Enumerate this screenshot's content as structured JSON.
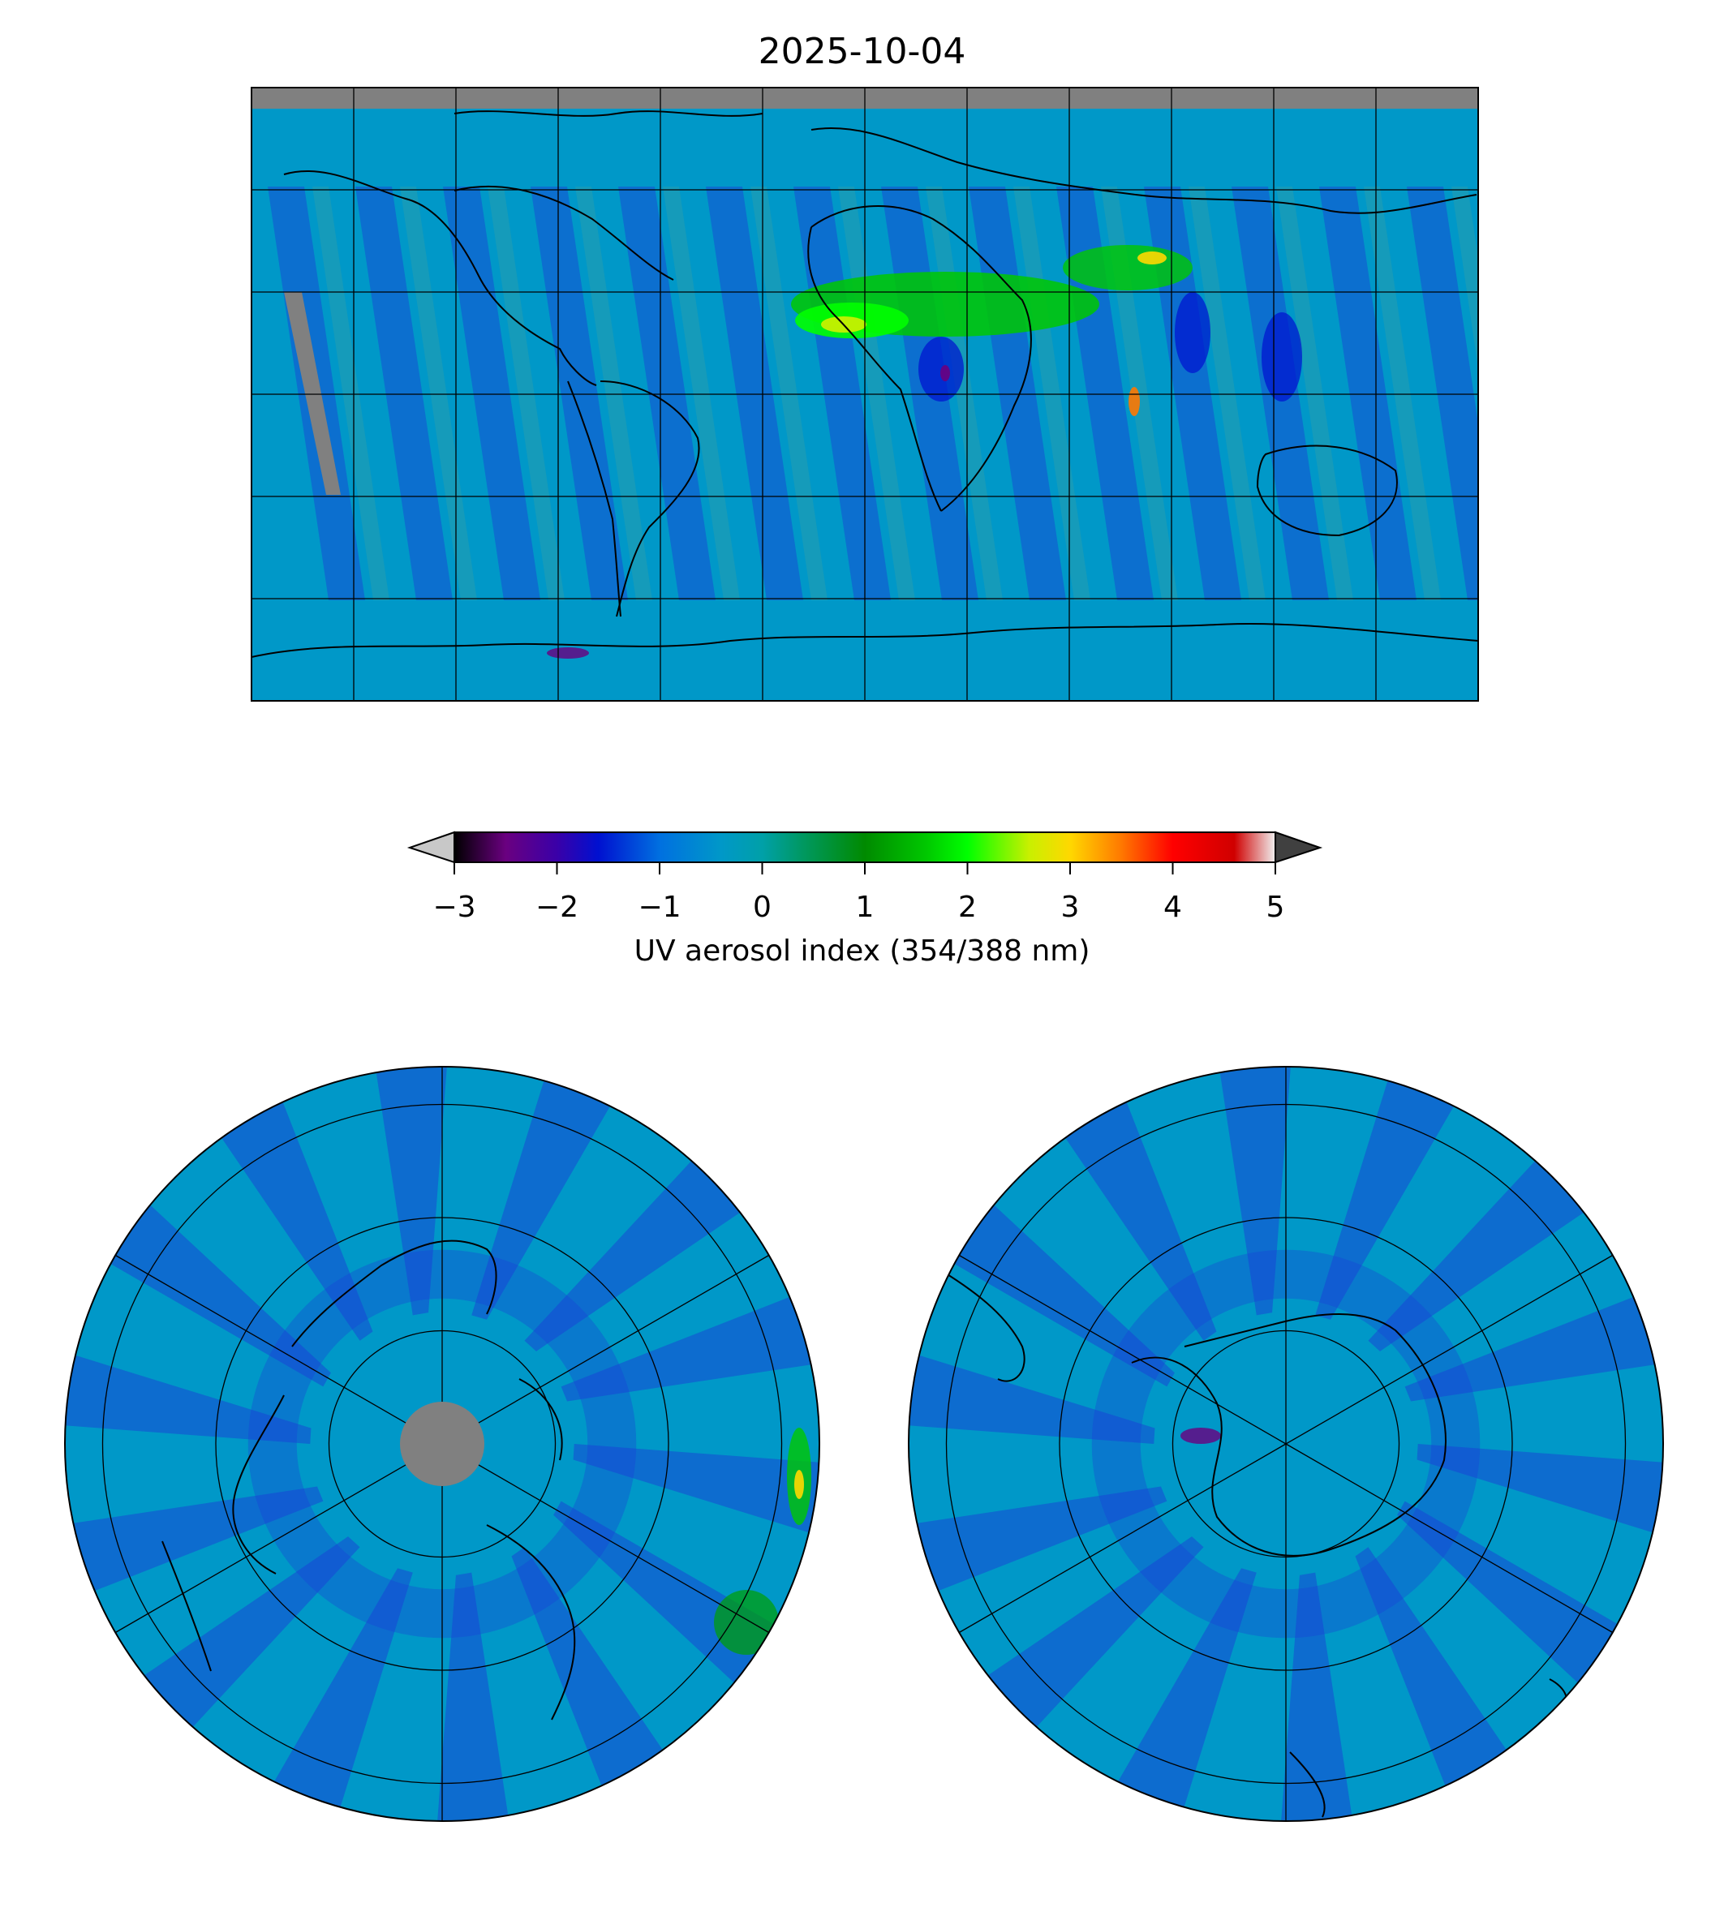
{
  "title": "2025-10-04",
  "colorbar": {
    "label": "UV aerosol index (354/388 nm)",
    "ticks": [
      "−3",
      "−2",
      "−1",
      "0",
      "1",
      "2",
      "3",
      "4",
      "5"
    ],
    "range": [
      -3,
      5
    ],
    "extend": "both",
    "colormap": [
      {
        "v": -3.0,
        "c": "#000000"
      },
      {
        "v": -2.5,
        "c": "#6a0080"
      },
      {
        "v": -2.0,
        "c": "#3a00a8"
      },
      {
        "v": -1.6,
        "c": "#0010d0"
      },
      {
        "v": -1.0,
        "c": "#0070e0"
      },
      {
        "v": -0.4,
        "c": "#0098c8"
      },
      {
        "v": 0.0,
        "c": "#00a0a8"
      },
      {
        "v": 0.4,
        "c": "#009860"
      },
      {
        "v": 1.0,
        "c": "#008a00"
      },
      {
        "v": 1.6,
        "c": "#00c800"
      },
      {
        "v": 2.0,
        "c": "#00ff00"
      },
      {
        "v": 2.6,
        "c": "#c8f000"
      },
      {
        "v": 3.0,
        "c": "#ffd800"
      },
      {
        "v": 3.5,
        "c": "#ff7800"
      },
      {
        "v": 4.0,
        "c": "#ff0000"
      },
      {
        "v": 4.6,
        "c": "#d00000"
      },
      {
        "v": 5.0,
        "c": "#f0f0f0"
      }
    ],
    "under_color": "#c8c8c8",
    "over_color": "#404040"
  },
  "maps": {
    "global": {
      "projection": "equirectangular",
      "gridlines": "30°",
      "background_value": -0.4,
      "missing_color": "#808080"
    },
    "north_polar": {
      "projection": "north-polar-stereographic",
      "missing_color": "#808080"
    },
    "south_polar": {
      "projection": "south-polar-stereographic"
    }
  },
  "colors": {
    "background_field": "#0098c8",
    "negative_swath": "#1a3fd6",
    "dust_plume": "#00e000",
    "coastline": "#000000",
    "no_data": "#808080"
  }
}
